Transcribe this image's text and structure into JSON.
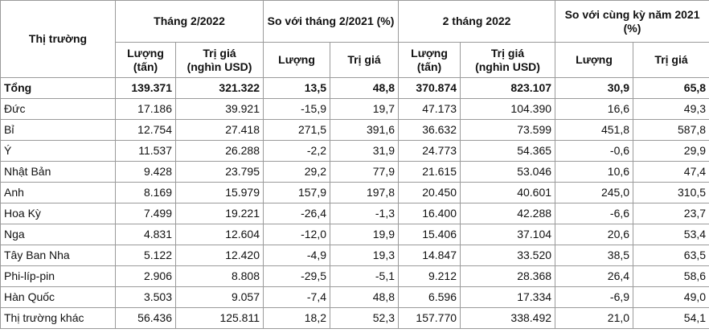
{
  "table": {
    "header": {
      "market": "Thị trường",
      "groups": [
        "Tháng 2/2022",
        "So với tháng 2/2021 (%)",
        "2 tháng 2022",
        "So với cùng kỳ năm 2021 (%)"
      ],
      "subheaders": [
        "Lượng (tấn)",
        "Trị giá (nghìn USD)",
        "Lượng",
        "Trị giá",
        "Lượng (tấn)",
        "Trị giá (nghìn USD)",
        "Lượng",
        "Trị giá"
      ]
    },
    "rows": [
      [
        "Tổng",
        "139.371",
        "321.322",
        "13,5",
        "48,8",
        "370.874",
        "823.107",
        "30,9",
        "65,8"
      ],
      [
        "Đức",
        "17.186",
        "39.921",
        "-15,9",
        "19,7",
        "47.173",
        "104.390",
        "16,6",
        "49,3"
      ],
      [
        "Bỉ",
        "12.754",
        "27.418",
        "271,5",
        "391,6",
        "36.632",
        "73.599",
        "451,8",
        "587,8"
      ],
      [
        "Ý",
        "11.537",
        "26.288",
        "-2,2",
        "31,9",
        "24.773",
        "54.365",
        "-0,6",
        "29,9"
      ],
      [
        "Nhật Bản",
        "9.428",
        "23.795",
        "29,2",
        "77,9",
        "21.615",
        "53.046",
        "10,6",
        "47,4"
      ],
      [
        "Anh",
        "8.169",
        "15.979",
        "157,9",
        "197,8",
        "20.450",
        "40.601",
        "245,0",
        "310,5"
      ],
      [
        "Hoa Kỳ",
        "7.499",
        "19.221",
        "-26,4",
        "-1,3",
        "16.400",
        "42.288",
        "-6,6",
        "23,7"
      ],
      [
        "Nga",
        "4.831",
        "12.604",
        "-12,0",
        "19,9",
        "15.406",
        "37.104",
        "20,6",
        "53,4"
      ],
      [
        "Tây Ban Nha",
        "5.122",
        "12.420",
        "-4,9",
        "19,3",
        "14.847",
        "33.520",
        "38,5",
        "63,5"
      ],
      [
        "Phi-líp-pin",
        "2.906",
        "8.808",
        "-29,5",
        "-5,1",
        "9.212",
        "28.368",
        "26,4",
        "58,6"
      ],
      [
        "Hàn Quốc",
        "3.503",
        "9.057",
        "-7,4",
        "48,8",
        "6.596",
        "17.334",
        "-6,9",
        "49,0"
      ],
      [
        "Thị trường khác",
        "56.436",
        "125.811",
        "18,2",
        "52,3",
        "157.770",
        "338.492",
        "21,0",
        "54,1"
      ]
    ]
  }
}
